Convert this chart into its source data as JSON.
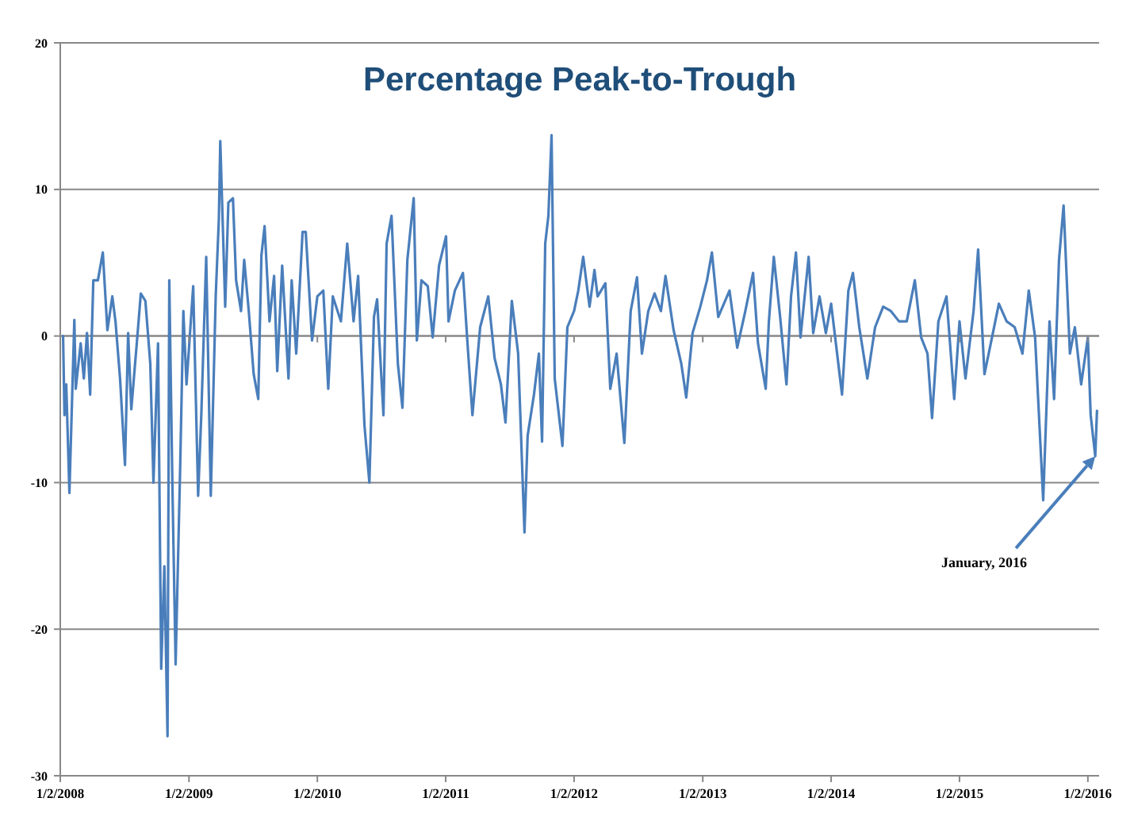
{
  "chart_data": {
    "type": "line",
    "title": "Percentage Peak-to-Trough",
    "xlim": [
      "2008-01-02",
      "2016-02-03"
    ],
    "xticks": [
      {
        "value": "2008-01-02",
        "label": "1/2/2008"
      },
      {
        "value": "2009-01-02",
        "label": "1/2/2009"
      },
      {
        "value": "2010-01-02",
        "label": "1/2/2010"
      },
      {
        "value": "2011-01-02",
        "label": "1/2/2011"
      },
      {
        "value": "2012-01-02",
        "label": "1/2/2012"
      },
      {
        "value": "2013-01-02",
        "label": "1/2/2013"
      },
      {
        "value": "2014-01-02",
        "label": "1/2/2014"
      },
      {
        "value": "2015-01-02",
        "label": "1/2/2015"
      },
      {
        "value": "2016-01-02",
        "label": "1/2/2016"
      }
    ],
    "ylim": [
      -30,
      20
    ],
    "yticks": [
      -30,
      -20,
      -10,
      0,
      10,
      20
    ],
    "grid": "y",
    "marker": "none",
    "line_style": "solid",
    "annotations": [
      {
        "text": "January, 2016",
        "x": "2016-01-23",
        "y": -8.2
      }
    ],
    "series": [
      {
        "color": "#4a7ebb",
        "x": [
          "2008-01-10",
          "2008-01-14",
          "2008-01-19",
          "2008-01-28",
          "2008-02-11",
          "2008-02-15",
          "2008-02-29",
          "2008-03-09",
          "2008-03-18",
          "2008-03-27",
          "2008-04-05",
          "2008-04-18",
          "2008-05-02",
          "2008-05-15",
          "2008-05-29",
          "2008-06-07",
          "2008-06-20",
          "2008-07-04",
          "2008-07-13",
          "2008-07-22",
          "2008-08-09",
          "2008-08-18",
          "2008-08-31",
          "2008-09-14",
          "2008-09-23",
          "2008-10-06",
          "2008-10-15",
          "2008-10-24",
          "2008-11-02",
          "2008-11-07",
          "2008-11-16",
          "2008-11-25",
          "2008-12-08",
          "2008-12-17",
          "2008-12-26",
          "2009-01-14",
          "2009-01-28",
          "2009-02-06",
          "2009-02-20",
          "2009-03-05",
          "2009-03-19",
          "2009-03-28",
          "2009-04-01",
          "2009-04-15",
          "2009-04-24",
          "2009-05-07",
          "2009-05-16",
          "2009-05-30",
          "2009-06-08",
          "2009-06-21",
          "2009-07-05",
          "2009-07-18",
          "2009-07-27",
          "2009-08-05",
          "2009-08-19",
          "2009-09-01",
          "2009-09-10",
          "2009-09-24",
          "2009-10-12",
          "2009-10-21",
          "2009-11-03",
          "2009-11-21",
          "2009-11-30",
          "2009-12-18",
          "2010-01-02",
          "2010-01-19",
          "2010-02-02",
          "2010-02-15",
          "2010-03-10",
          "2010-03-28",
          "2010-04-15",
          "2010-04-28",
          "2010-05-16",
          "2010-05-30",
          "2010-06-12",
          "2010-06-21",
          "2010-07-09",
          "2010-07-18",
          "2010-08-01",
          "2010-08-19",
          "2010-09-01",
          "2010-09-15",
          "2010-10-03",
          "2010-10-12",
          "2010-10-25",
          "2010-11-12",
          "2010-11-26",
          "2010-12-14",
          "2011-01-03",
          "2011-01-10",
          "2011-01-28",
          "2011-02-20",
          "2011-03-05",
          "2011-03-19",
          "2011-04-10",
          "2011-05-03",
          "2011-05-21",
          "2011-06-08",
          "2011-06-21",
          "2011-07-09",
          "2011-07-27",
          "2011-08-14",
          "2011-08-23",
          "2011-09-10",
          "2011-09-24",
          "2011-10-03",
          "2011-10-12",
          "2011-10-21",
          "2011-10-30",
          "2011-11-08",
          "2011-11-30",
          "2011-12-14",
          "2012-01-02",
          "2012-01-14",
          "2012-01-28",
          "2012-02-15",
          "2012-02-29",
          "2012-03-09",
          "2012-03-31",
          "2012-04-14",
          "2012-05-02",
          "2012-05-24",
          "2012-06-11",
          "2012-06-29",
          "2012-07-13",
          "2012-07-31",
          "2012-08-18",
          "2012-09-05",
          "2012-09-18",
          "2012-10-11",
          "2012-11-02",
          "2012-11-16",
          "2012-12-04",
          "2012-12-26",
          "2013-01-14",
          "2013-01-28",
          "2013-02-15",
          "2013-03-19",
          "2013-04-10",
          "2013-05-03",
          "2013-05-25",
          "2013-06-08",
          "2013-06-30",
          "2013-07-09",
          "2013-07-23",
          "2013-08-10",
          "2013-08-28",
          "2013-09-10",
          "2013-09-24",
          "2013-10-07",
          "2013-10-30",
          "2013-11-12",
          "2013-11-30",
          "2013-12-18",
          "2014-01-02",
          "2014-02-02",
          "2014-02-20",
          "2014-03-05",
          "2014-03-23",
          "2014-04-15",
          "2014-05-07",
          "2014-05-30",
          "2014-06-21",
          "2014-07-14",
          "2014-08-05",
          "2014-08-28",
          "2014-09-15",
          "2014-10-03",
          "2014-10-16",
          "2014-11-03",
          "2014-11-26",
          "2014-12-18",
          "2015-01-02",
          "2015-01-19",
          "2015-02-11",
          "2015-02-24",
          "2015-03-14",
          "2015-04-01",
          "2015-04-24",
          "2015-05-16",
          "2015-06-08",
          "2015-06-30",
          "2015-07-18",
          "2015-08-05",
          "2015-08-28",
          "2015-09-15",
          "2015-09-28",
          "2015-10-12",
          "2015-10-25",
          "2015-11-12",
          "2015-11-26",
          "2015-12-14",
          "2016-01-02",
          "2016-01-10",
          "2016-01-23",
          "2016-01-28"
        ],
        "values": [
          0,
          -5.4,
          -3.3,
          -10.7,
          1.1,
          -3.6,
          -0.5,
          -2.9,
          0.2,
          -4,
          3.8,
          3.8,
          5.7,
          0.4,
          2.7,
          1,
          -2.9,
          -8.8,
          0.2,
          -5,
          0.2,
          2.9,
          2.4,
          -1.9,
          -10,
          -0.5,
          -22.7,
          -15.7,
          -27.3,
          3.8,
          -10.4,
          -22.4,
          -8.9,
          1.7,
          -3.3,
          3.4,
          -10.9,
          -5.4,
          5.4,
          -10.9,
          2.7,
          8,
          13.3,
          2,
          9.1,
          9.4,
          3.8,
          1.7,
          5.2,
          1.7,
          -2.6,
          -4.3,
          5.5,
          7.5,
          1,
          4.1,
          -2.4,
          4.8,
          -2.9,
          3.8,
          -1.2,
          7.1,
          7.1,
          -0.3,
          2.7,
          3.1,
          -3.6,
          2.7,
          1,
          6.3,
          1,
          4.1,
          -6.1,
          -10,
          1.3,
          2.5,
          -5.4,
          6.3,
          8.2,
          -1.9,
          -4.9,
          5.2,
          9.4,
          -0.3,
          3.8,
          3.4,
          -0.1,
          4.8,
          6.8,
          1,
          3.1,
          4.3,
          -0.5,
          -5.4,
          0.6,
          2.7,
          -1.5,
          -3.3,
          -5.9,
          2.4,
          -1.2,
          -13.4,
          -6.8,
          -4,
          -1.2,
          -7.2,
          6.3,
          8.2,
          13.7,
          -2.9,
          -7.5,
          0.6,
          1.7,
          3.1,
          5.4,
          2,
          4.5,
          2.7,
          3.6,
          -3.6,
          -1.2,
          -7.3,
          1.7,
          4,
          -1.2,
          1.7,
          2.9,
          1.7,
          4.1,
          0.4,
          -1.9,
          -4.2,
          0.2,
          2,
          3.8,
          5.7,
          1.3,
          3.1,
          -0.8,
          1.7,
          4.3,
          -0.5,
          -3.6,
          1,
          5.4,
          1.3,
          -3.3,
          2.7,
          5.7,
          -0.1,
          5.4,
          0.2,
          2.7,
          0.2,
          2.2,
          -4,
          3.1,
          4.3,
          0.6,
          -2.9,
          0.6,
          2,
          1.7,
          1,
          1,
          3.8,
          -0.1,
          -1.2,
          -5.6,
          1,
          2.7,
          -4.3,
          1,
          -2.9,
          1.7,
          5.9,
          -2.6,
          -0.5,
          2.2,
          1,
          0.6,
          -1.2,
          3.1,
          -0.1,
          -11.2,
          1,
          -4.3,
          5.2,
          8.9,
          -1.2,
          0.6,
          -3.3,
          -0.1,
          -5.4,
          -8.2,
          -5.1
        ]
      }
    ]
  }
}
